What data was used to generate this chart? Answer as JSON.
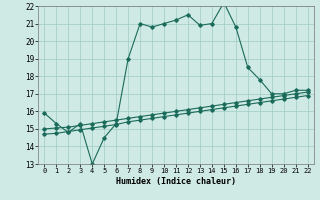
{
  "xlabel": "Humidex (Indice chaleur)",
  "xlim": [
    -0.5,
    22.5
  ],
  "ylim": [
    13,
    22
  ],
  "yticks": [
    13,
    14,
    15,
    16,
    17,
    18,
    19,
    20,
    21,
    22
  ],
  "xticks": [
    0,
    1,
    2,
    3,
    4,
    5,
    6,
    7,
    8,
    9,
    10,
    11,
    12,
    13,
    14,
    15,
    16,
    17,
    18,
    19,
    20,
    21,
    22
  ],
  "background_color": "#cfe9e4",
  "grid_color": "#9dccc4",
  "line_color": "#1a6b5a",
  "line1_x": [
    0,
    1,
    2,
    3,
    4,
    5,
    6,
    7,
    8,
    9,
    10,
    11,
    12,
    13,
    14,
    15,
    16,
    17,
    18,
    19,
    20,
    21,
    22
  ],
  "line1_y": [
    15.9,
    15.3,
    14.8,
    15.3,
    13.0,
    14.5,
    15.3,
    19.0,
    21.0,
    20.8,
    21.0,
    21.2,
    21.5,
    20.9,
    21.0,
    22.2,
    20.8,
    18.5,
    17.8,
    17.0,
    17.0,
    17.2,
    17.2
  ],
  "line2_x": [
    0,
    1,
    2,
    3,
    4,
    5,
    6,
    7,
    8,
    9,
    10,
    11,
    12,
    13,
    14,
    15,
    16,
    17,
    18,
    19,
    20,
    21,
    22
  ],
  "line2_y": [
    15.0,
    15.05,
    15.1,
    15.2,
    15.3,
    15.4,
    15.5,
    15.6,
    15.7,
    15.8,
    15.9,
    16.0,
    16.1,
    16.2,
    16.3,
    16.4,
    16.5,
    16.6,
    16.7,
    16.8,
    16.9,
    17.0,
    17.1
  ],
  "line3_x": [
    0,
    1,
    2,
    3,
    4,
    5,
    6,
    7,
    8,
    9,
    10,
    11,
    12,
    13,
    14,
    15,
    16,
    17,
    18,
    19,
    20,
    21,
    22
  ],
  "line3_y": [
    14.7,
    14.75,
    14.85,
    14.95,
    15.05,
    15.15,
    15.25,
    15.4,
    15.5,
    15.6,
    15.7,
    15.8,
    15.9,
    16.0,
    16.1,
    16.2,
    16.3,
    16.4,
    16.5,
    16.6,
    16.7,
    16.8,
    16.9
  ]
}
